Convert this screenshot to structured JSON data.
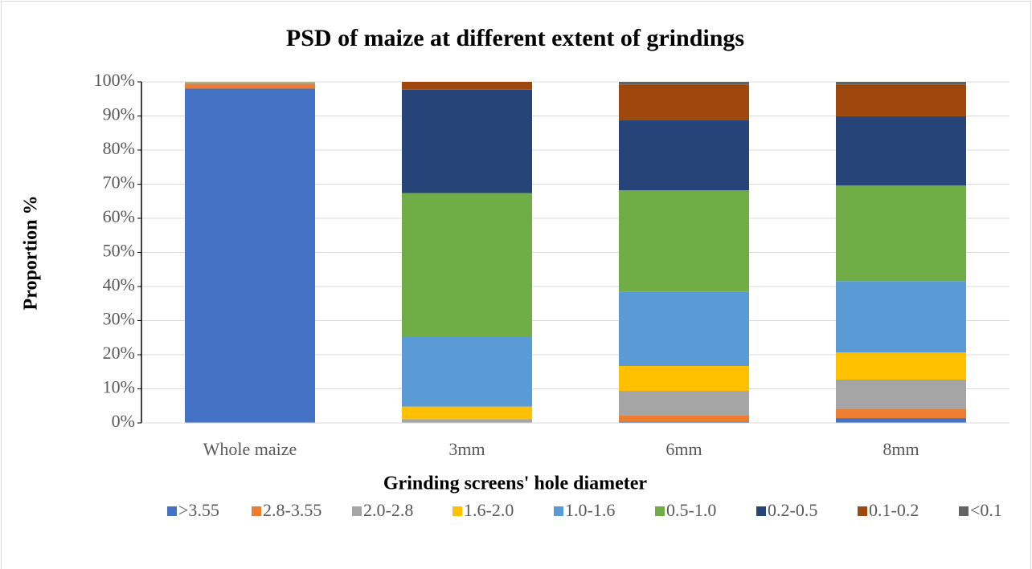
{
  "chart_data": {
    "type": "stacked_bar",
    "title": "PSD of maize at different extent of grindings",
    "x_label": "Grinding screens' hole diameter",
    "y_label": "Proportion %",
    "categories": [
      "Whole maize",
      "3mm",
      "6mm",
      "8mm"
    ],
    "series": [
      {
        "name": ">3.55",
        "color": "#4472c4",
        "values": [
          98,
          0,
          0.4,
          1.4
        ]
      },
      {
        "name": "2.8-3.55",
        "color": "#ed7d31",
        "values": [
          1.4,
          0.1,
          1.9,
          2.6
        ]
      },
      {
        "name": "2.0-2.8",
        "color": "#a5a5a5",
        "values": [
          0.4,
          1.0,
          7.1,
          8.7
        ]
      },
      {
        "name": "1.6-2.0",
        "color": "#ffc000",
        "values": [
          0.1,
          3.7,
          7.3,
          8.0
        ]
      },
      {
        "name": "1.0-1.6",
        "color": "#5b9bd5",
        "values": [
          0.1,
          20.5,
          21.7,
          20.9
        ]
      },
      {
        "name": "0.5-1.0",
        "color": "#70ad47",
        "values": [
          0,
          42.1,
          29.8,
          28.0
        ]
      },
      {
        "name": "0.2-0.5",
        "color": "#264478",
        "values": [
          0,
          30.3,
          20.5,
          20.3
        ]
      },
      {
        "name": "0.1-0.2",
        "color": "#9e480e",
        "values": [
          0,
          2.3,
          10.4,
          9.2
        ]
      },
      {
        "name": "<0.1",
        "color": "#636363",
        "values": [
          0,
          0,
          0.9,
          0.9
        ]
      }
    ],
    "ylim": [
      0,
      100
    ],
    "yticks": [
      {
        "value": 0,
        "label": "0%"
      },
      {
        "value": 10,
        "label": "10%"
      },
      {
        "value": 20,
        "label": "20%"
      },
      {
        "value": 30,
        "label": "30%"
      },
      {
        "value": 40,
        "label": "40%"
      },
      {
        "value": 50,
        "label": "50%"
      },
      {
        "value": 60,
        "label": "60%"
      },
      {
        "value": 70,
        "label": "70%"
      },
      {
        "value": 80,
        "label": "80%"
      },
      {
        "value": 90,
        "label": "90%"
      },
      {
        "value": 100,
        "label": "100%"
      }
    ],
    "grid": true,
    "legend": "bottom"
  }
}
